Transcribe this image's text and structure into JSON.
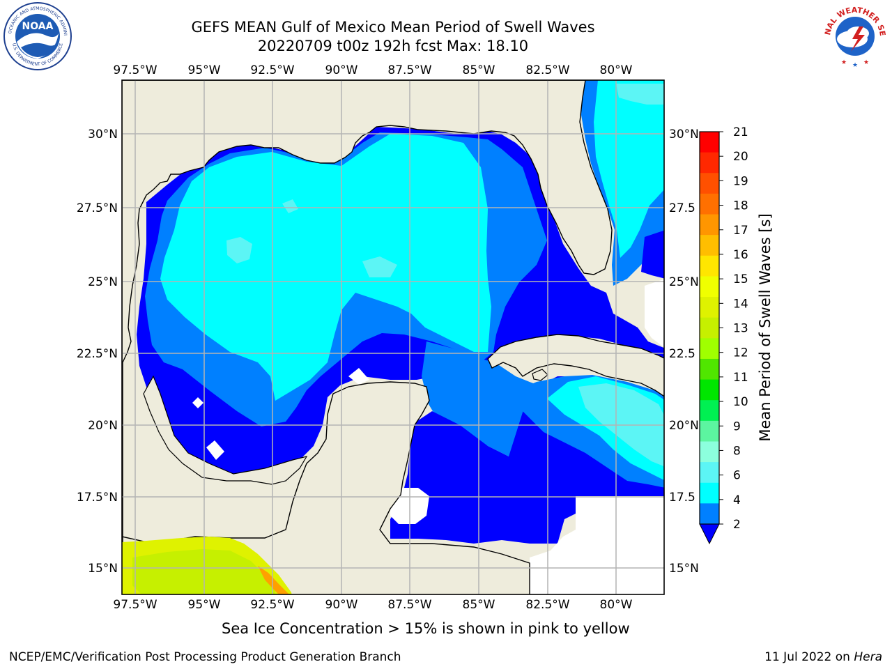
{
  "header": {
    "title_line1": "GEFS MEAN Gulf of Mexico Mean Period of Swell Waves",
    "title_line2": "20220709 t00z 192h fcst   Max: 18.10"
  },
  "logos": {
    "left": "NOAA logo",
    "left_ring_text": "NATIONAL OCEANIC AND ATMOSPHERIC ADMINISTRATION",
    "left_ring_text_bottom": "U.S. DEPARTMENT OF COMMERCE",
    "left_center_text": "NOAA",
    "right": "National Weather Service logo",
    "right_ring_text": "NATIONAL WEATHER SERVICE"
  },
  "map": {
    "lon_labels": [
      "97.5°W",
      "95°W",
      "92.5°W",
      "90°W",
      "87.5°W",
      "85°W",
      "82.5°W",
      "80°W"
    ],
    "lat_labels_left": [
      "30°N",
      "27.5°N",
      "25°N",
      "22.5°N",
      "20°N",
      "17.5°N",
      "15°N"
    ],
    "lat_labels_right": [
      "30°N",
      "27.5",
      "25°N",
      "22.5",
      "20°N",
      "17.5",
      "15°N"
    ],
    "lon_range": [
      -98,
      -79
    ],
    "lat_range": [
      14,
      31.7
    ],
    "land_color": "#eeecdc",
    "ocean_colors": {
      "2-4": "#0000ff",
      "4-6": "#0080ff",
      "6-8": "#00ffff",
      "8-9": "#5cf5f5"
    },
    "sea_ice_colors": [
      "#dff200",
      "#c6f000",
      "#f0ff00",
      "#ffa000"
    ]
  },
  "colorbar": {
    "label": "Mean Period of Swell Waves [s]",
    "ticks": [
      "21",
      "20",
      "19",
      "18",
      "17",
      "16",
      "15",
      "14",
      "13",
      "12",
      "11",
      "10",
      "9",
      "8",
      "6",
      "4",
      "2"
    ],
    "colors": [
      "#ff0000",
      "#ff2800",
      "#ff5000",
      "#ff7000",
      "#ff9600",
      "#ffbe00",
      "#ffe600",
      "#f0ff00",
      "#dff200",
      "#c6f000",
      "#a0ff00",
      "#50e600",
      "#00e600",
      "#00f052",
      "#5cf5a0",
      "#8cffdd",
      "#5cf5f5",
      "#00ffff",
      "#0080ff"
    ],
    "extend_color": "#0000ff"
  },
  "footer": {
    "sea_ice_note": "Sea Ice Concentration > 15% is shown in pink to yellow",
    "credit": "NCEP/EMC/Verification Post Processing Product Generation Branch",
    "date_prefix": "11 Jul 2022 on ",
    "date_host": "Hera"
  }
}
